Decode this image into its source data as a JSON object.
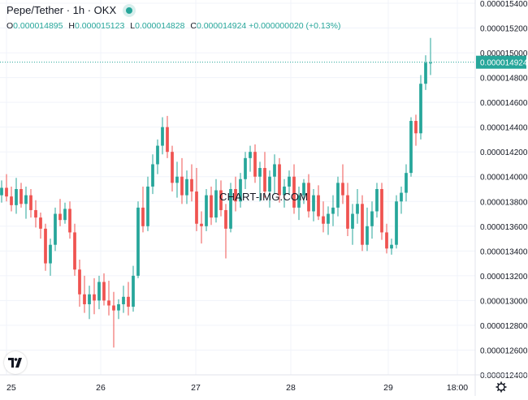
{
  "header": {
    "title": "Pepe/Tether · 1h · OKX",
    "ohlc": [
      {
        "key": "O",
        "value": "0.000014895"
      },
      {
        "key": "H",
        "value": "0.000015123"
      },
      {
        "key": "L",
        "value": "0.000014828"
      },
      {
        "key": "C",
        "value": "0.000014924 +0.000000020 (+0.13%)"
      }
    ]
  },
  "watermark": "CHART-IMG.COM",
  "colors": {
    "up": "#26a69a",
    "down": "#ef5350",
    "grid": "#f0f3fa",
    "axis_text": "#131722",
    "last_price_line": "#26a69a"
  },
  "icons": {
    "logo": "tradingview-logo-icon",
    "settings": "gear-icon"
  },
  "chart_data": {
    "type": "candlestick",
    "title": "Pepe/Tether · 1h · OKX",
    "y_ticks": [
      "0.000015400",
      "0.000015200",
      "0.000015000",
      "0.000014800",
      "0.000014600",
      "0.000014400",
      "0.000014200",
      "0.000014000",
      "0.000013800",
      "0.000013600",
      "0.000013400",
      "0.000013200",
      "0.000013000",
      "0.000012800",
      "0.000012600",
      "0.000012400"
    ],
    "ylim": [
      1.24e-05,
      1.54e-05
    ],
    "x_ticks": [
      "25",
      "26",
      "27",
      "28",
      "29",
      "18:00"
    ],
    "last_price": "0.000014924",
    "last_close": 1.4924e-05,
    "grid": true,
    "candles_note": "approximate OHLC read off the chart, 1h candles, values in 1e-8 USDT",
    "candles": [
      [
        1385,
        1397,
        1379,
        1391
      ],
      [
        1391,
        1402,
        1380,
        1384
      ],
      [
        1384,
        1392,
        1372,
        1377
      ],
      [
        1377,
        1399,
        1370,
        1390
      ],
      [
        1390,
        1395,
        1375,
        1378
      ],
      [
        1378,
        1392,
        1366,
        1385
      ],
      [
        1385,
        1390,
        1367,
        1373
      ],
      [
        1373,
        1381,
        1359,
        1367
      ],
      [
        1367,
        1371,
        1350,
        1358
      ],
      [
        1358,
        1362,
        1324,
        1330
      ],
      [
        1330,
        1350,
        1320,
        1345
      ],
      [
        1345,
        1375,
        1340,
        1370
      ],
      [
        1370,
        1382,
        1360,
        1365
      ],
      [
        1365,
        1379,
        1362,
        1374
      ],
      [
        1374,
        1380,
        1350,
        1355
      ],
      [
        1355,
        1362,
        1320,
        1325
      ],
      [
        1325,
        1333,
        1295,
        1305
      ],
      [
        1305,
        1320,
        1290,
        1297
      ],
      [
        1297,
        1312,
        1285,
        1305
      ],
      [
        1305,
        1318,
        1289,
        1300
      ],
      [
        1300,
        1320,
        1293,
        1315
      ],
      [
        1315,
        1322,
        1296,
        1300
      ],
      [
        1300,
        1316,
        1288,
        1296
      ],
      [
        1296,
        1307,
        1262,
        1292
      ],
      [
        1292,
        1301,
        1285,
        1297
      ],
      [
        1297,
        1312,
        1290,
        1303
      ],
      [
        1303,
        1315,
        1288,
        1295
      ],
      [
        1295,
        1328,
        1291,
        1320
      ],
      [
        1320,
        1380,
        1318,
        1375
      ],
      [
        1375,
        1392,
        1355,
        1360
      ],
      [
        1360,
        1400,
        1356,
        1392
      ],
      [
        1392,
        1418,
        1386,
        1410
      ],
      [
        1410,
        1430,
        1402,
        1425
      ],
      [
        1425,
        1448,
        1418,
        1440
      ],
      [
        1440,
        1449,
        1415,
        1420
      ],
      [
        1420,
        1425,
        1388,
        1395
      ],
      [
        1395,
        1412,
        1383,
        1400
      ],
      [
        1400,
        1415,
        1378,
        1385
      ],
      [
        1385,
        1405,
        1378,
        1398
      ],
      [
        1398,
        1410,
        1380,
        1388
      ],
      [
        1388,
        1407,
        1356,
        1362
      ],
      [
        1362,
        1372,
        1346,
        1360
      ],
      [
        1360,
        1390,
        1356,
        1385
      ],
      [
        1385,
        1392,
        1361,
        1367
      ],
      [
        1367,
        1398,
        1363,
        1389
      ],
      [
        1389,
        1397,
        1368,
        1373
      ],
      [
        1373,
        1378,
        1334,
        1358
      ],
      [
        1358,
        1395,
        1355,
        1390
      ],
      [
        1390,
        1400,
        1372,
        1380
      ],
      [
        1380,
        1403,
        1375,
        1398
      ],
      [
        1398,
        1420,
        1390,
        1415
      ],
      [
        1415,
        1425,
        1404,
        1420
      ],
      [
        1420,
        1426,
        1395,
        1400
      ],
      [
        1400,
        1412,
        1380,
        1407
      ],
      [
        1407,
        1420,
        1383,
        1388
      ],
      [
        1388,
        1405,
        1375,
        1400
      ],
      [
        1400,
        1418,
        1386,
        1410
      ],
      [
        1410,
        1415,
        1379,
        1385
      ],
      [
        1385,
        1398,
        1375,
        1392
      ],
      [
        1392,
        1405,
        1386,
        1400
      ],
      [
        1400,
        1410,
        1370,
        1375
      ],
      [
        1375,
        1392,
        1365,
        1385
      ],
      [
        1385,
        1398,
        1378,
        1395
      ],
      [
        1395,
        1402,
        1367,
        1372
      ],
      [
        1372,
        1390,
        1364,
        1385
      ],
      [
        1385,
        1393,
        1365,
        1368
      ],
      [
        1368,
        1380,
        1355,
        1362
      ],
      [
        1362,
        1376,
        1353,
        1370
      ],
      [
        1370,
        1385,
        1360,
        1375
      ],
      [
        1375,
        1400,
        1368,
        1395
      ],
      [
        1395,
        1410,
        1378,
        1385
      ],
      [
        1385,
        1395,
        1352,
        1358
      ],
      [
        1358,
        1378,
        1345,
        1370
      ],
      [
        1370,
        1390,
        1362,
        1378
      ],
      [
        1378,
        1385,
        1340,
        1345
      ],
      [
        1345,
        1375,
        1340,
        1360
      ],
      [
        1360,
        1380,
        1350,
        1372
      ],
      [
        1372,
        1395,
        1367,
        1390
      ],
      [
        1390,
        1395,
        1349,
        1355
      ],
      [
        1355,
        1362,
        1338,
        1342
      ],
      [
        1342,
        1350,
        1337,
        1345
      ],
      [
        1345,
        1385,
        1342,
        1380
      ],
      [
        1380,
        1392,
        1370,
        1387
      ],
      [
        1387,
        1410,
        1380,
        1403
      ],
      [
        1403,
        1448,
        1400,
        1445
      ],
      [
        1445,
        1450,
        1425,
        1435
      ],
      [
        1435,
        1482,
        1430,
        1475
      ],
      [
        1475,
        1498,
        1470,
        1492
      ],
      [
        1492,
        1512,
        1482,
        1492
      ]
    ]
  }
}
